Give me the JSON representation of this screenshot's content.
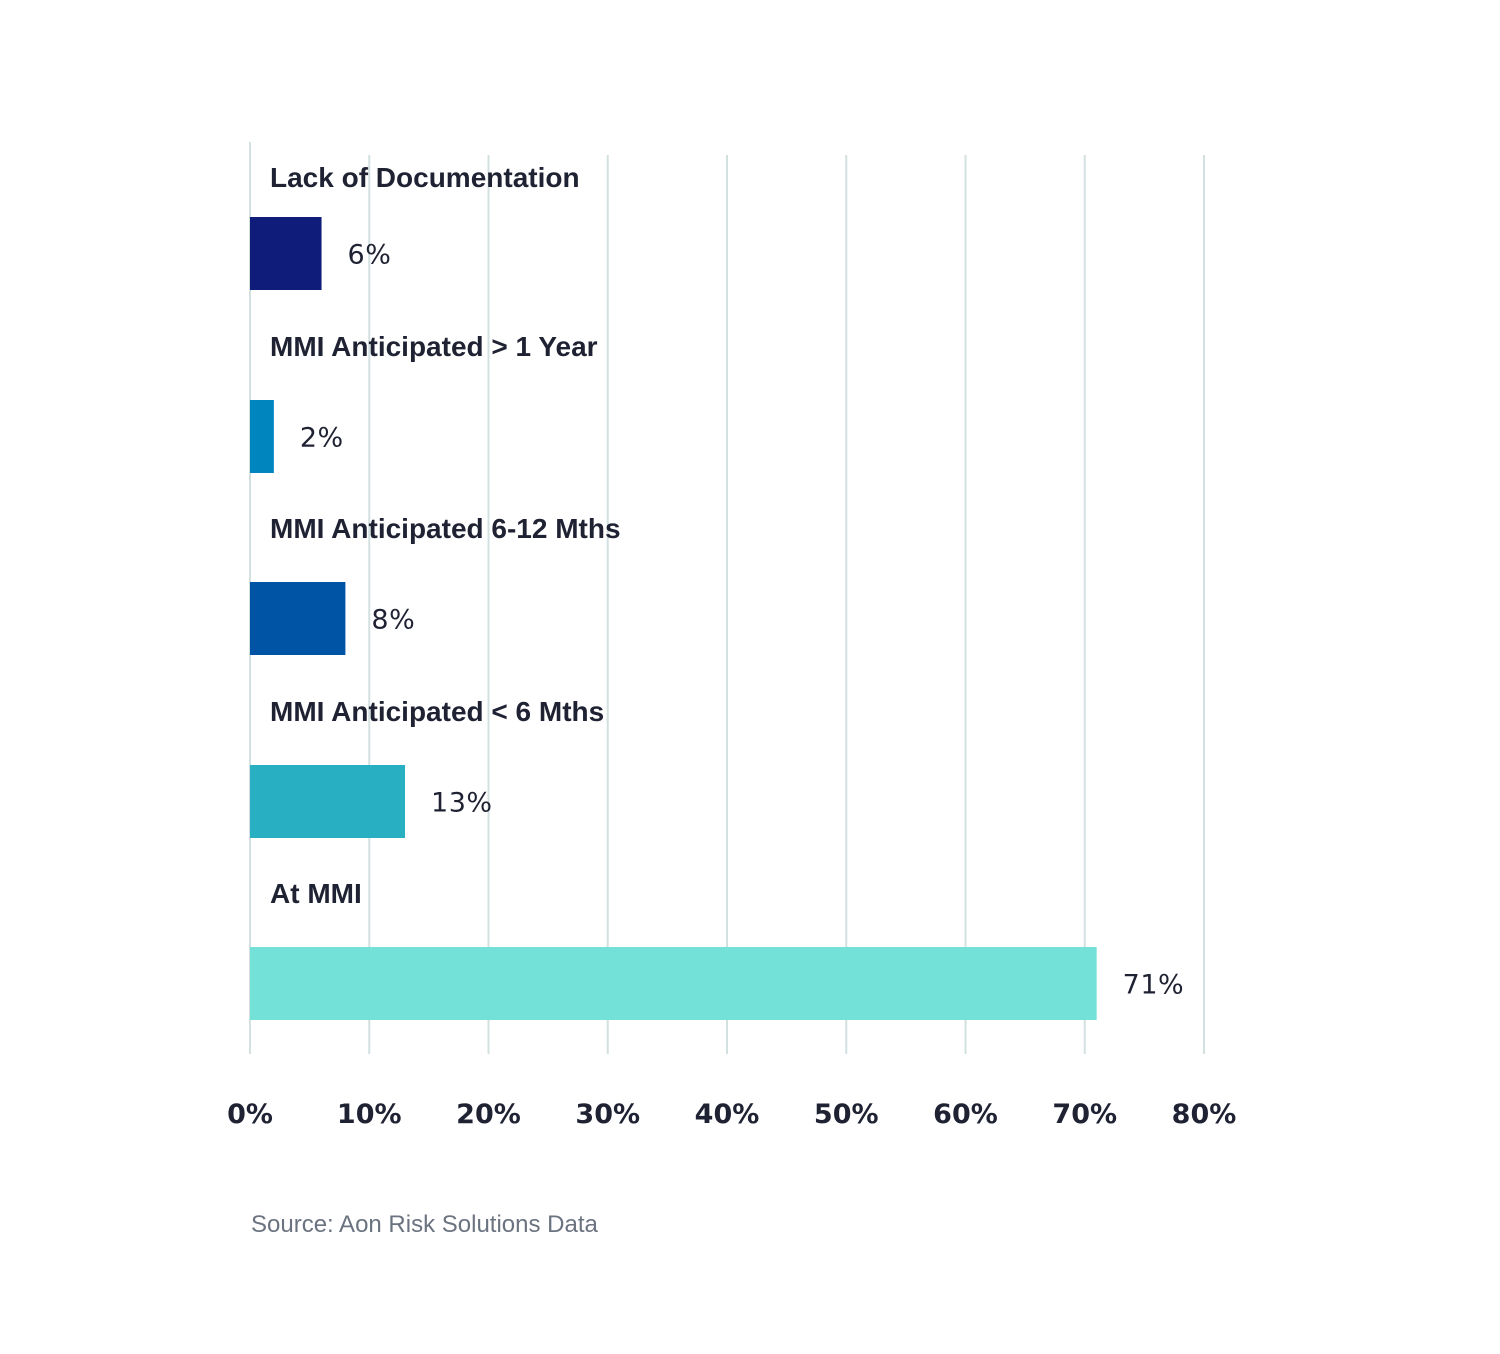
{
  "chart_data": {
    "type": "bar",
    "orientation": "horizontal",
    "categories": [
      "Lack of Documentation",
      "MMI Anticipated > 1 Year",
      "MMI Anticipated 6-12 Mths",
      "MMI Anticipated < 6 Mths",
      "At MMI"
    ],
    "values": [
      6,
      2,
      8,
      13,
      71
    ],
    "value_labels": [
      "6%",
      "2%",
      "8%",
      "13%",
      "71%"
    ],
    "colors": [
      "#101c7a",
      "#0085bf",
      "#0054a6",
      "#29afc2",
      "#74e1d9"
    ],
    "xlim": [
      0,
      80
    ],
    "xticks": [
      0,
      10,
      20,
      30,
      40,
      50,
      60,
      70,
      80
    ],
    "xtick_labels": [
      "0%",
      "10%",
      "20%",
      "30%",
      "40%",
      "50%",
      "60%",
      "70%",
      "80%"
    ],
    "grid": true,
    "title": "",
    "xlabel": "",
    "ylabel": ""
  },
  "source": "Source: Aon Risk Solutions Data"
}
